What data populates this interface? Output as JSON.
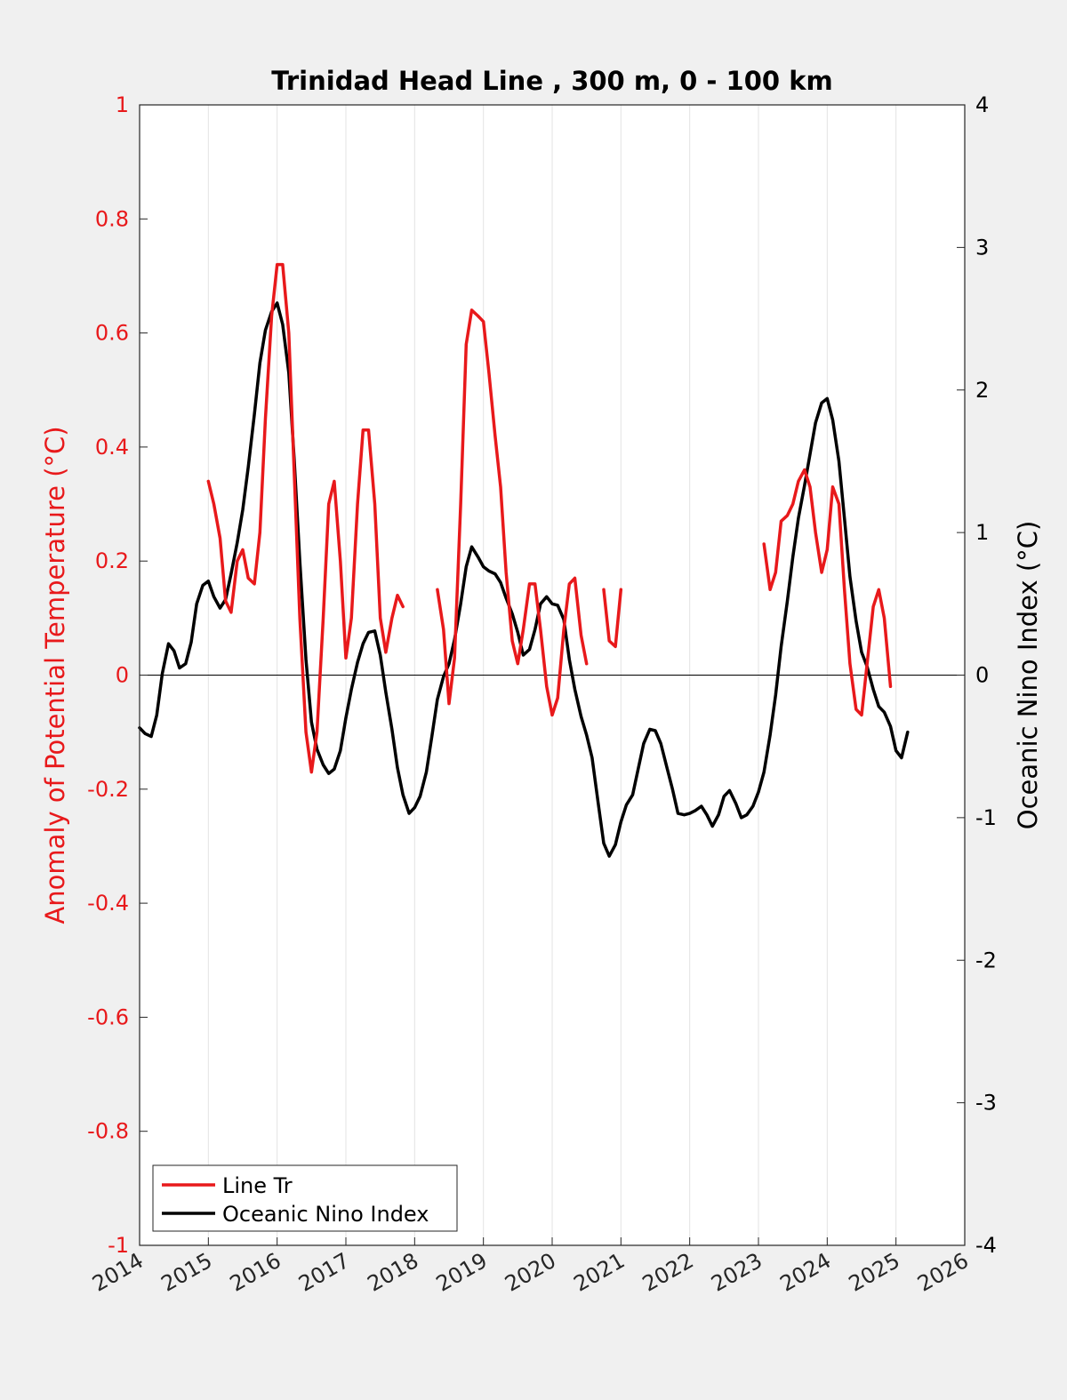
{
  "chart_data": {
    "type": "line",
    "title": "Trinidad Head Line , 300 m, 0 - 100 km",
    "xlabel": "",
    "ylabel_left": "Anomaly of Potential Temperature (°C)",
    "ylabel_right": "Oceanic Nino Index (°C)",
    "xlim": [
      2014,
      2026
    ],
    "ylim_left": [
      -1,
      1
    ],
    "ylim_right": [
      -4,
      4
    ],
    "x_ticks": [
      "2014",
      "2015",
      "2016",
      "2017",
      "2018",
      "2019",
      "2020",
      "2021",
      "2022",
      "2023",
      "2024",
      "2025",
      "2026"
    ],
    "y_ticks_left": [
      "1",
      "0.8",
      "0.6",
      "0.4",
      "0.2",
      "0",
      "-0.2",
      "-0.4",
      "-0.6",
      "-0.8",
      "-1"
    ],
    "y_ticks_right": [
      "4",
      "3",
      "2",
      "1",
      "0",
      "-1",
      "-2",
      "-3",
      "-4"
    ],
    "grid": "vertical",
    "legend_position": "bottom-left",
    "colors": {
      "line_tr": "#e8191b",
      "oni": "#000000",
      "left_axis": "#e8191b",
      "right_axis": "#000000"
    },
    "series": [
      {
        "name": "Line Tr",
        "axis": "left",
        "segments": [
          [
            [
              2015.0,
              0.34
            ],
            [
              2015.08,
              0.3
            ],
            [
              2015.17,
              0.24
            ],
            [
              2015.25,
              0.13
            ],
            [
              2015.33,
              0.11
            ],
            [
              2015.42,
              0.2
            ],
            [
              2015.5,
              0.22
            ],
            [
              2015.58,
              0.17
            ],
            [
              2015.67,
              0.16
            ],
            [
              2015.75,
              0.25
            ],
            [
              2015.83,
              0.45
            ],
            [
              2015.92,
              0.63
            ],
            [
              2016.0,
              0.72
            ],
            [
              2016.08,
              0.72
            ],
            [
              2016.17,
              0.6
            ],
            [
              2016.25,
              0.35
            ],
            [
              2016.33,
              0.1
            ],
            [
              2016.42,
              -0.1
            ],
            [
              2016.5,
              -0.17
            ],
            [
              2016.58,
              -0.1
            ],
            [
              2016.67,
              0.1
            ],
            [
              2016.75,
              0.3
            ],
            [
              2016.83,
              0.34
            ],
            [
              2016.92,
              0.2
            ],
            [
              2017.0,
              0.03
            ],
            [
              2017.08,
              0.1
            ],
            [
              2017.17,
              0.3
            ],
            [
              2017.25,
              0.43
            ],
            [
              2017.33,
              0.43
            ],
            [
              2017.42,
              0.3
            ],
            [
              2017.5,
              0.1
            ],
            [
              2017.58,
              0.04
            ],
            [
              2017.67,
              0.1
            ],
            [
              2017.75,
              0.14
            ],
            [
              2017.83,
              0.12
            ]
          ],
          [
            [
              2018.33,
              0.15
            ],
            [
              2018.42,
              0.08
            ],
            [
              2018.5,
              -0.05
            ],
            [
              2018.58,
              0.03
            ],
            [
              2018.67,
              0.3
            ],
            [
              2018.75,
              0.58
            ],
            [
              2018.83,
              0.64
            ],
            [
              2018.92,
              0.63
            ],
            [
              2019.0,
              0.62
            ],
            [
              2019.08,
              0.53
            ],
            [
              2019.17,
              0.42
            ],
            [
              2019.25,
              0.33
            ],
            [
              2019.33,
              0.18
            ],
            [
              2019.42,
              0.06
            ],
            [
              2019.5,
              0.02
            ],
            [
              2019.58,
              0.08
            ],
            [
              2019.67,
              0.16
            ],
            [
              2019.75,
              0.16
            ],
            [
              2019.83,
              0.08
            ],
            [
              2019.92,
              -0.02
            ],
            [
              2020.0,
              -0.07
            ],
            [
              2020.08,
              -0.04
            ],
            [
              2020.17,
              0.08
            ],
            [
              2020.25,
              0.16
            ],
            [
              2020.33,
              0.17
            ],
            [
              2020.42,
              0.07
            ],
            [
              2020.5,
              0.02
            ]
          ],
          [
            [
              2020.75,
              0.15
            ],
            [
              2020.83,
              0.06
            ],
            [
              2020.92,
              0.05
            ],
            [
              2021.0,
              0.15
            ]
          ],
          [
            [
              2023.08,
              0.23
            ],
            [
              2023.17,
              0.15
            ],
            [
              2023.25,
              0.18
            ],
            [
              2023.33,
              0.27
            ],
            [
              2023.42,
              0.28
            ],
            [
              2023.5,
              0.3
            ],
            [
              2023.58,
              0.34
            ],
            [
              2023.67,
              0.36
            ],
            [
              2023.75,
              0.33
            ],
            [
              2023.83,
              0.25
            ],
            [
              2023.92,
              0.18
            ],
            [
              2024.0,
              0.22
            ],
            [
              2024.08,
              0.33
            ],
            [
              2024.17,
              0.3
            ],
            [
              2024.25,
              0.15
            ],
            [
              2024.33,
              0.02
            ],
            [
              2024.42,
              -0.06
            ],
            [
              2024.5,
              -0.07
            ],
            [
              2024.58,
              0.02
            ],
            [
              2024.67,
              0.12
            ],
            [
              2024.75,
              0.15
            ],
            [
              2024.83,
              0.1
            ],
            [
              2024.92,
              -0.02
            ]
          ]
        ]
      },
      {
        "name": "Oceanic Nino Index",
        "axis": "right",
        "segments": [
          [
            [
              2014.0,
              -0.37
            ],
            [
              2014.08,
              -0.41
            ],
            [
              2014.17,
              -0.43
            ],
            [
              2014.25,
              -0.28
            ],
            [
              2014.33,
              0.01
            ],
            [
              2014.42,
              0.22
            ],
            [
              2014.5,
              0.17
            ],
            [
              2014.58,
              0.05
            ],
            [
              2014.67,
              0.08
            ],
            [
              2014.75,
              0.23
            ],
            [
              2014.83,
              0.5
            ],
            [
              2014.92,
              0.63
            ],
            [
              2015.0,
              0.66
            ],
            [
              2015.08,
              0.55
            ],
            [
              2015.17,
              0.47
            ],
            [
              2015.25,
              0.53
            ],
            [
              2015.33,
              0.71
            ],
            [
              2015.42,
              0.93
            ],
            [
              2015.5,
              1.16
            ],
            [
              2015.58,
              1.46
            ],
            [
              2015.67,
              1.83
            ],
            [
              2015.75,
              2.19
            ],
            [
              2015.83,
              2.42
            ],
            [
              2015.92,
              2.55
            ],
            [
              2016.0,
              2.61
            ],
            [
              2016.08,
              2.46
            ],
            [
              2016.17,
              2.12
            ],
            [
              2016.25,
              1.5
            ],
            [
              2016.33,
              0.8
            ],
            [
              2016.42,
              0.11
            ],
            [
              2016.5,
              -0.33
            ],
            [
              2016.58,
              -0.52
            ],
            [
              2016.67,
              -0.63
            ],
            [
              2016.75,
              -0.69
            ],
            [
              2016.83,
              -0.66
            ],
            [
              2016.92,
              -0.53
            ],
            [
              2017.0,
              -0.3
            ],
            [
              2017.08,
              -0.1
            ],
            [
              2017.17,
              0.09
            ],
            [
              2017.25,
              0.22
            ],
            [
              2017.33,
              0.3
            ],
            [
              2017.42,
              0.31
            ],
            [
              2017.5,
              0.14
            ],
            [
              2017.58,
              -0.12
            ],
            [
              2017.67,
              -0.38
            ],
            [
              2017.75,
              -0.65
            ],
            [
              2017.83,
              -0.84
            ],
            [
              2017.92,
              -0.97
            ],
            [
              2018.0,
              -0.93
            ],
            [
              2018.08,
              -0.85
            ],
            [
              2018.17,
              -0.68
            ],
            [
              2018.25,
              -0.43
            ],
            [
              2018.33,
              -0.17
            ],
            [
              2018.42,
              -0.01
            ],
            [
              2018.5,
              0.08
            ],
            [
              2018.58,
              0.25
            ],
            [
              2018.67,
              0.5
            ],
            [
              2018.75,
              0.76
            ],
            [
              2018.83,
              0.9
            ],
            [
              2018.92,
              0.83
            ],
            [
              2019.0,
              0.76
            ],
            [
              2019.08,
              0.73
            ],
            [
              2019.17,
              0.71
            ],
            [
              2019.25,
              0.65
            ],
            [
              2019.33,
              0.54
            ],
            [
              2019.42,
              0.43
            ],
            [
              2019.5,
              0.3
            ],
            [
              2019.58,
              0.14
            ],
            [
              2019.67,
              0.18
            ],
            [
              2019.75,
              0.32
            ],
            [
              2019.83,
              0.5
            ],
            [
              2019.92,
              0.55
            ],
            [
              2020.0,
              0.5
            ],
            [
              2020.08,
              0.49
            ],
            [
              2020.17,
              0.39
            ],
            [
              2020.25,
              0.11
            ],
            [
              2020.33,
              -0.1
            ],
            [
              2020.42,
              -0.29
            ],
            [
              2020.5,
              -0.42
            ],
            [
              2020.58,
              -0.58
            ],
            [
              2020.67,
              -0.9
            ],
            [
              2020.75,
              -1.18
            ],
            [
              2020.83,
              -1.27
            ],
            [
              2020.92,
              -1.19
            ],
            [
              2021.0,
              -1.03
            ],
            [
              2021.08,
              -0.91
            ],
            [
              2021.17,
              -0.84
            ],
            [
              2021.25,
              -0.66
            ],
            [
              2021.33,
              -0.48
            ],
            [
              2021.42,
              -0.38
            ],
            [
              2021.5,
              -0.39
            ],
            [
              2021.58,
              -0.48
            ],
            [
              2021.67,
              -0.65
            ],
            [
              2021.75,
              -0.8
            ],
            [
              2021.83,
              -0.97
            ],
            [
              2021.92,
              -0.98
            ],
            [
              2022.0,
              -0.97
            ],
            [
              2022.08,
              -0.95
            ],
            [
              2022.17,
              -0.92
            ],
            [
              2022.25,
              -0.98
            ],
            [
              2022.33,
              -1.06
            ],
            [
              2022.42,
              -0.98
            ],
            [
              2022.5,
              -0.85
            ],
            [
              2022.58,
              -0.81
            ],
            [
              2022.67,
              -0.9
            ],
            [
              2022.75,
              -1.0
            ],
            [
              2022.83,
              -0.98
            ],
            [
              2022.92,
              -0.92
            ],
            [
              2023.0,
              -0.82
            ],
            [
              2023.08,
              -0.68
            ],
            [
              2023.17,
              -0.42
            ],
            [
              2023.25,
              -0.14
            ],
            [
              2023.33,
              0.2
            ],
            [
              2023.42,
              0.52
            ],
            [
              2023.5,
              0.83
            ],
            [
              2023.58,
              1.1
            ],
            [
              2023.67,
              1.33
            ],
            [
              2023.75,
              1.55
            ],
            [
              2023.83,
              1.77
            ],
            [
              2023.92,
              1.91
            ],
            [
              2024.0,
              1.94
            ],
            [
              2024.08,
              1.79
            ],
            [
              2024.17,
              1.5
            ],
            [
              2024.25,
              1.1
            ],
            [
              2024.33,
              0.69
            ],
            [
              2024.42,
              0.38
            ],
            [
              2024.5,
              0.16
            ],
            [
              2024.58,
              0.06
            ],
            [
              2024.67,
              -0.1
            ],
            [
              2024.75,
              -0.22
            ],
            [
              2024.83,
              -0.26
            ],
            [
              2024.92,
              -0.36
            ],
            [
              2025.0,
              -0.53
            ],
            [
              2025.08,
              -0.58
            ],
            [
              2025.17,
              -0.4
            ]
          ]
        ]
      }
    ]
  }
}
